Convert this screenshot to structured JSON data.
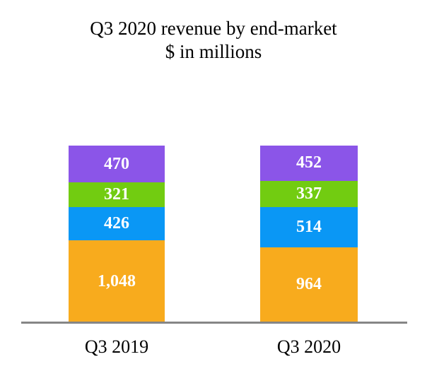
{
  "chart_data": {
    "type": "bar",
    "stacked": true,
    "title": "Q3 2020 revenue by end-market",
    "subtitle": "$ in millions",
    "categories": [
      "Q3 2019",
      "Q3 2020"
    ],
    "totals": [
      2265,
      2267
    ],
    "series": [
      {
        "name": "orange-bottom-segment",
        "color": "#f8ab1d",
        "values": [
          1048,
          964
        ],
        "labels": [
          "1,048",
          "964"
        ]
      },
      {
        "name": "blue-segment",
        "color": "#0a97f5",
        "values": [
          426,
          514
        ],
        "labels": [
          "426",
          "514"
        ]
      },
      {
        "name": "green-segment",
        "color": "#72cc11",
        "values": [
          321,
          337
        ],
        "labels": [
          "321",
          "337"
        ]
      },
      {
        "name": "purple-top-segment",
        "color": "#8b55e8",
        "values": [
          470,
          452
        ],
        "labels": [
          "470",
          "452"
        ]
      }
    ],
    "value_label_color": "#ffffff",
    "axis_line_color": "#868686",
    "legend": "none",
    "grid": false
  }
}
